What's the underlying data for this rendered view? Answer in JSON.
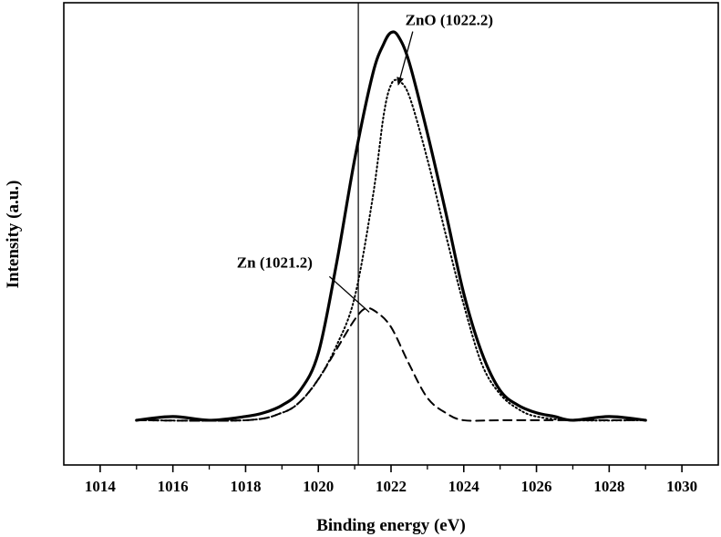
{
  "chart_data": {
    "type": "line",
    "title": "",
    "xlabel": "Binding energy (eV)",
    "ylabel": "Intensity (a.u.)",
    "xlim": [
      1013,
      1031
    ],
    "ylim": [
      -0.12,
      1.12
    ],
    "x_ticks": [
      "1014",
      "1016",
      "1018",
      "1020",
      "1022",
      "1024",
      "1026",
      "1028",
      "1030"
    ],
    "grid": false,
    "legend": "none",
    "reference_line_x": 1021.1,
    "series": [
      {
        "style": "solid",
        "x": [
          1015.0,
          1016.0,
          1017.0,
          1018.0,
          1018.5,
          1019.0,
          1019.5,
          1020.0,
          1020.5,
          1021.0,
          1021.5,
          1021.8,
          1022.0,
          1022.2,
          1022.5,
          1023.0,
          1023.5,
          1024.0,
          1024.5,
          1025.0,
          1025.5,
          1026.0,
          1026.5,
          1027.0,
          1028.0,
          1029.0
        ],
        "y": [
          0.0,
          0.01,
          0.0,
          0.01,
          0.02,
          0.04,
          0.08,
          0.18,
          0.42,
          0.7,
          0.93,
          1.01,
          1.04,
          1.03,
          0.96,
          0.77,
          0.56,
          0.34,
          0.18,
          0.08,
          0.04,
          0.02,
          0.01,
          0.0,
          0.01,
          0.0
        ]
      },
      {
        "style": "dotted",
        "x": [
          1015.0,
          1018.0,
          1019.0,
          1019.5,
          1020.0,
          1020.5,
          1021.0,
          1021.5,
          1021.8,
          1022.0,
          1022.2,
          1022.5,
          1023.0,
          1023.5,
          1024.0,
          1024.5,
          1025.0,
          1025.5,
          1026.0,
          1027.0,
          1029.0
        ],
        "y": [
          0.0,
          0.0,
          0.02,
          0.05,
          0.11,
          0.2,
          0.33,
          0.6,
          0.82,
          0.9,
          0.91,
          0.87,
          0.7,
          0.5,
          0.31,
          0.15,
          0.07,
          0.03,
          0.01,
          0.0,
          0.0
        ]
      },
      {
        "style": "dashed",
        "x": [
          1015.0,
          1018.0,
          1019.0,
          1019.5,
          1020.0,
          1020.5,
          1021.0,
          1021.3,
          1021.6,
          1022.0,
          1022.5,
          1023.0,
          1023.5,
          1024.0,
          1025.0,
          1027.0,
          1029.0
        ],
        "y": [
          0.0,
          0.0,
          0.02,
          0.05,
          0.11,
          0.19,
          0.27,
          0.3,
          0.29,
          0.25,
          0.15,
          0.06,
          0.02,
          0.0,
          0.0,
          0.0,
          0.0
        ]
      }
    ],
    "annotations": [
      {
        "label": "ZnO (1022.2)",
        "x": 1023.6,
        "y": 1.06,
        "arrow_to": [
          1022.2,
          0.9
        ]
      },
      {
        "label": "Zn (1021.2)",
        "x": 1018.8,
        "y": 0.41,
        "arrow_to": [
          1021.4,
          0.29
        ]
      }
    ]
  }
}
